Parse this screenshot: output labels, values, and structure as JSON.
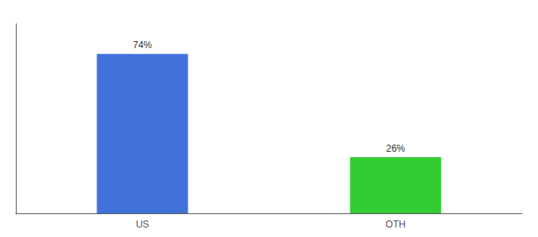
{
  "chart_data": {
    "type": "bar",
    "categories": [
      "US",
      "OTH"
    ],
    "values": [
      74,
      26
    ],
    "value_labels": [
      "74%",
      "26%"
    ],
    "data_labels": true,
    "colors": [
      "#4472db",
      "#33cc33"
    ],
    "ylim": [
      0,
      88
    ],
    "tick_labels": "x",
    "grid": false
  }
}
